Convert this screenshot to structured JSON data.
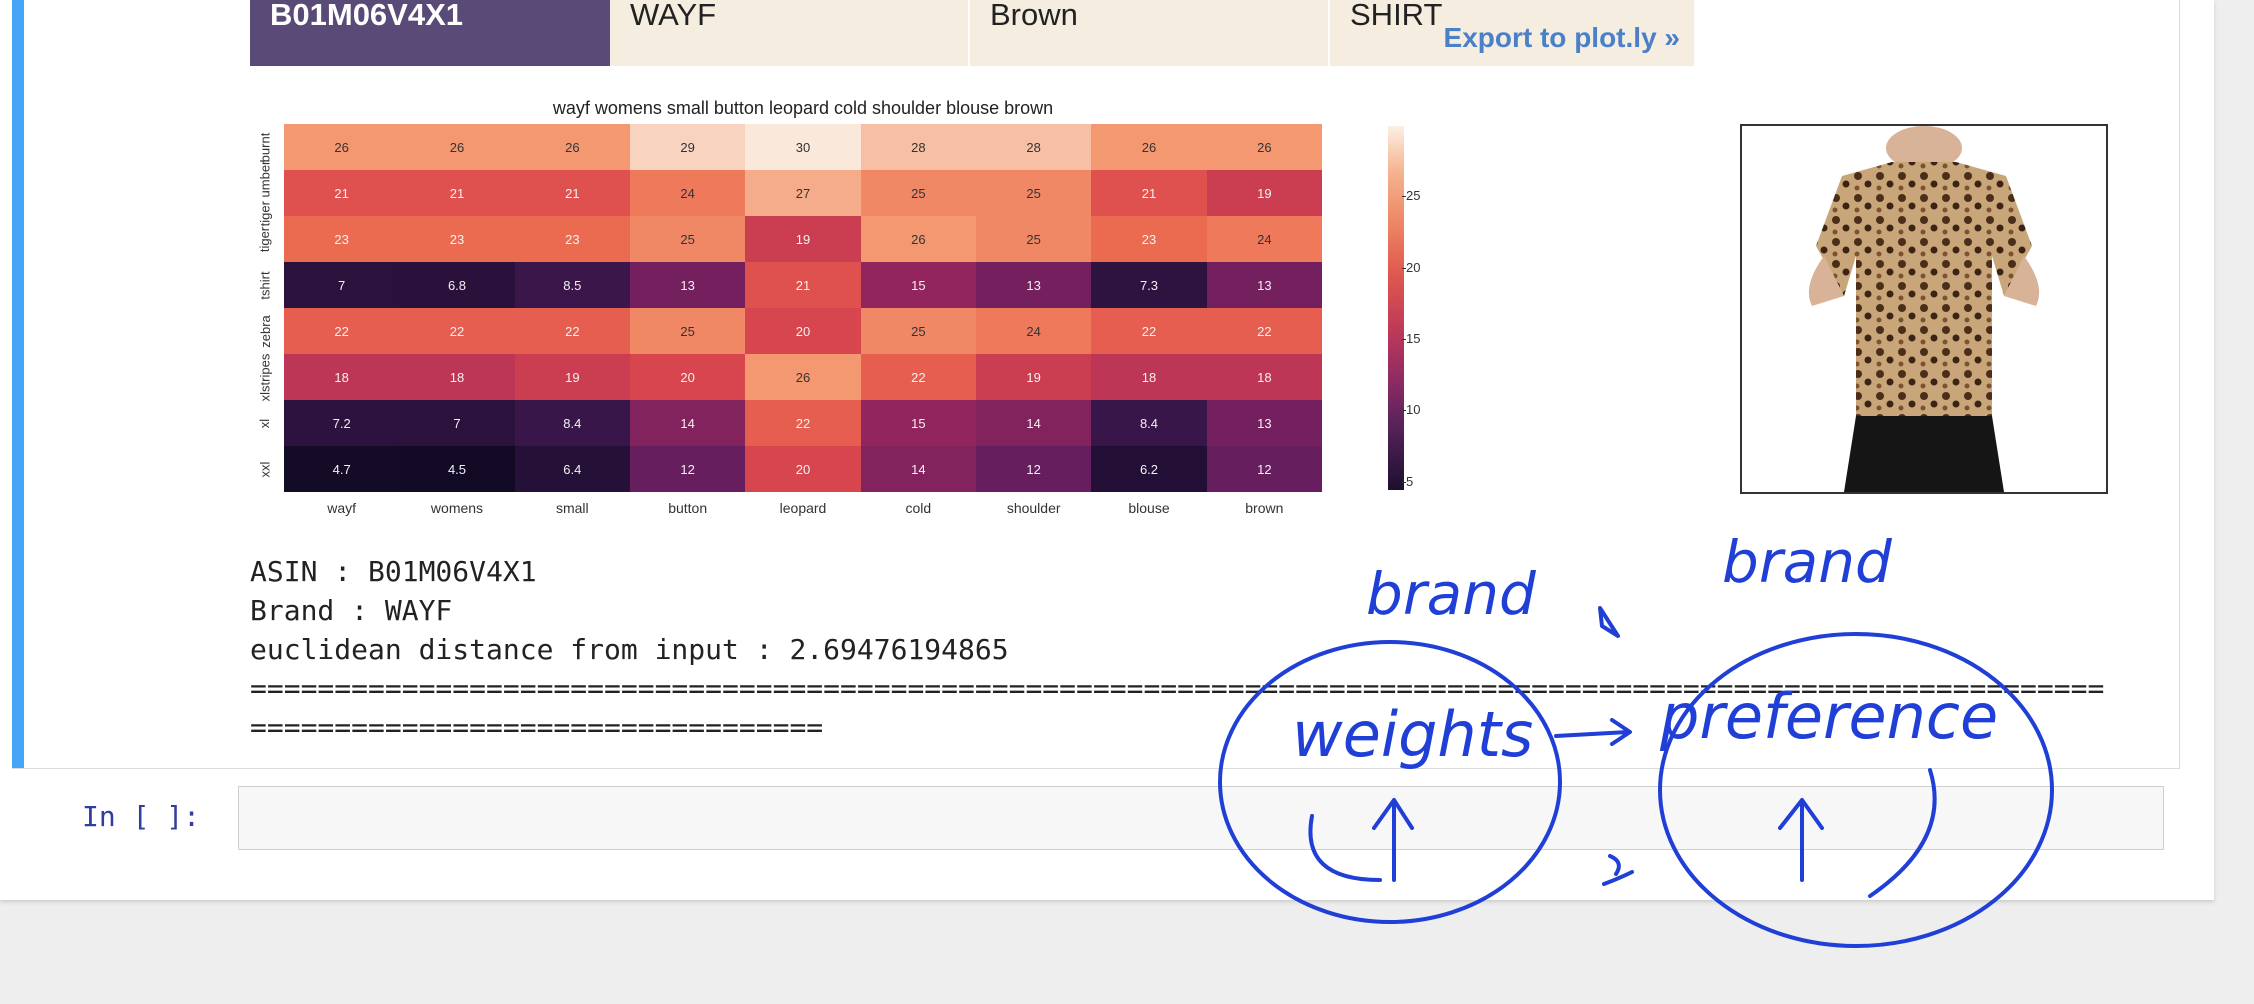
{
  "result_header": {
    "asin": "B01M06V4X1",
    "brand": "WAYF",
    "color": "Brown",
    "type": "SHIRT",
    "export_link": "Export to plot.ly »"
  },
  "chart_data": {
    "type": "heatmap",
    "title": "wayf womens small button leopard cold shoulder blouse brown",
    "x_labels": [
      "wayf",
      "womens",
      "small",
      "button",
      "leopard",
      "cold",
      "shoulder",
      "blouse",
      "brown"
    ],
    "y_labels": [
      "burnt",
      "tiger umber",
      "tiger",
      "tshirt",
      "zebra",
      "xlstripes",
      "xl",
      "xxl"
    ],
    "values": [
      [
        26,
        26,
        26,
        29,
        30,
        28,
        28,
        26,
        26
      ],
      [
        21,
        21,
        21,
        24,
        27,
        25,
        25,
        21,
        19
      ],
      [
        23,
        23,
        23,
        25,
        19,
        26,
        25,
        23,
        24
      ],
      [
        7,
        6.8,
        8.5,
        13,
        21,
        15,
        13,
        7.3,
        13
      ],
      [
        22,
        22,
        22,
        25,
        20,
        25,
        24,
        22,
        22
      ],
      [
        18,
        18,
        19,
        20,
        26,
        22,
        19,
        18,
        18
      ],
      [
        7.2,
        7,
        8.4,
        14,
        22,
        15,
        14,
        8.4,
        13
      ],
      [
        4.7,
        4.5,
        6.4,
        12,
        20,
        14,
        12,
        6.2,
        12
      ]
    ],
    "colorbar_ticks": [
      "25",
      "20",
      "15",
      "10",
      "5"
    ],
    "vmin": 4.5,
    "vmax": 30,
    "colormap": "rocket"
  },
  "output_text": {
    "asin_line": "ASIN : B01M06V4X1",
    "brand_line": "Brand : WAYF",
    "distance_line": "euclidean distance from input : 2.69476194865",
    "separator_line1": "==============================================================================================================",
    "separator_line2": "=================================="
  },
  "prompt": {
    "label": "In [ ]:"
  },
  "handwriting": {
    "label_left_top": "brand",
    "label_right_top": "brand",
    "circle_left": "weights",
    "circle_right": "preference"
  },
  "colors": {
    "accent_bar": "#42a5f5",
    "ink": "#1f3fd6",
    "asin_bg": "#5a4a78"
  }
}
